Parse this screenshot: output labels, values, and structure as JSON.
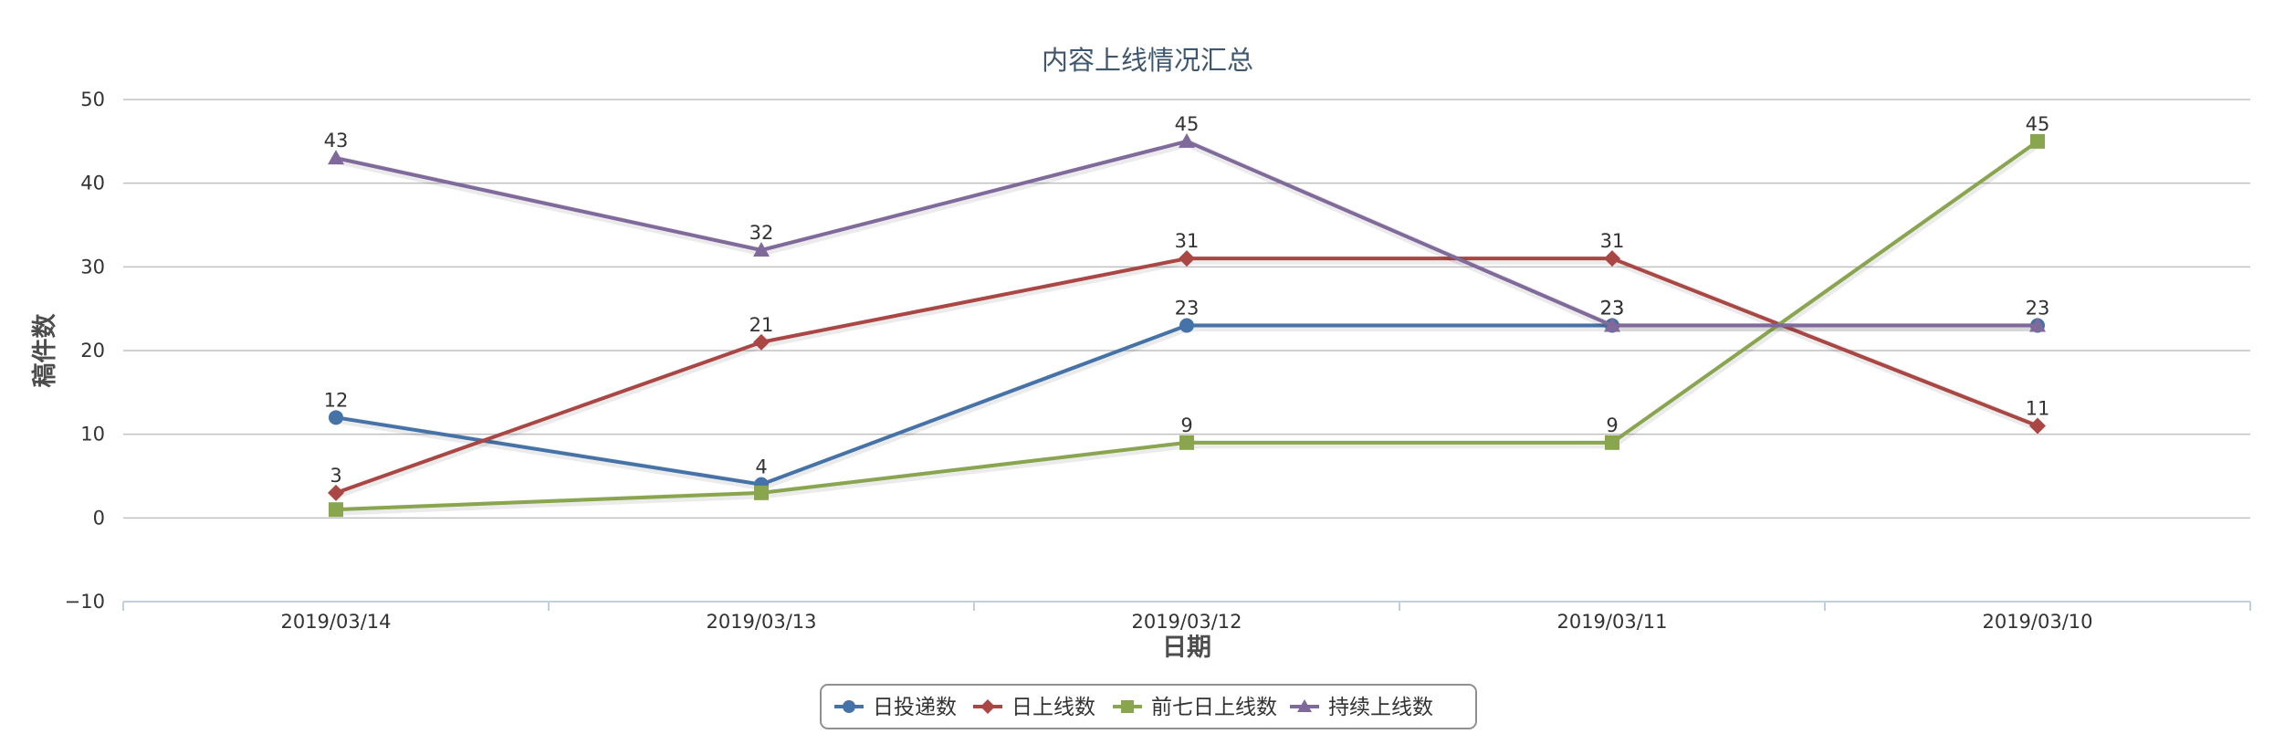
{
  "chart_data": {
    "type": "line",
    "title": "内容上线情况汇总",
    "xlabel": "日期",
    "ylabel": "稿件数",
    "categories": [
      "2019/03/14",
      "2019/03/13",
      "2019/03/12",
      "2019/03/11",
      "2019/03/10"
    ],
    "ylim": [
      -10,
      50
    ],
    "yticks": [
      -10,
      0,
      10,
      20,
      30,
      40,
      50
    ],
    "grid": true,
    "legend_position": "bottom-center",
    "series": [
      {
        "name": "日投递数",
        "color": "#4572A7",
        "marker": "circle",
        "values": [
          12,
          4,
          23,
          23,
          23
        ]
      },
      {
        "name": "日上线数",
        "color": "#AA4643",
        "marker": "diamond",
        "values": [
          3,
          21,
          31,
          31,
          11
        ]
      },
      {
        "name": "前七日上线数",
        "color": "#89A54E",
        "marker": "square",
        "values": [
          1,
          3,
          9,
          9,
          45
        ]
      },
      {
        "name": "持续上线数",
        "color": "#80699B",
        "marker": "triangle",
        "values": [
          43,
          32,
          45,
          23,
          23
        ]
      }
    ],
    "data_labels": [
      [
        "12",
        "4",
        "23",
        "23",
        "23"
      ],
      [
        "3",
        "21",
        "31",
        "31",
        "11"
      ],
      [
        "",
        "",
        "9",
        "9",
        "45"
      ],
      [
        "43",
        "32",
        "45",
        "23",
        ""
      ]
    ]
  }
}
